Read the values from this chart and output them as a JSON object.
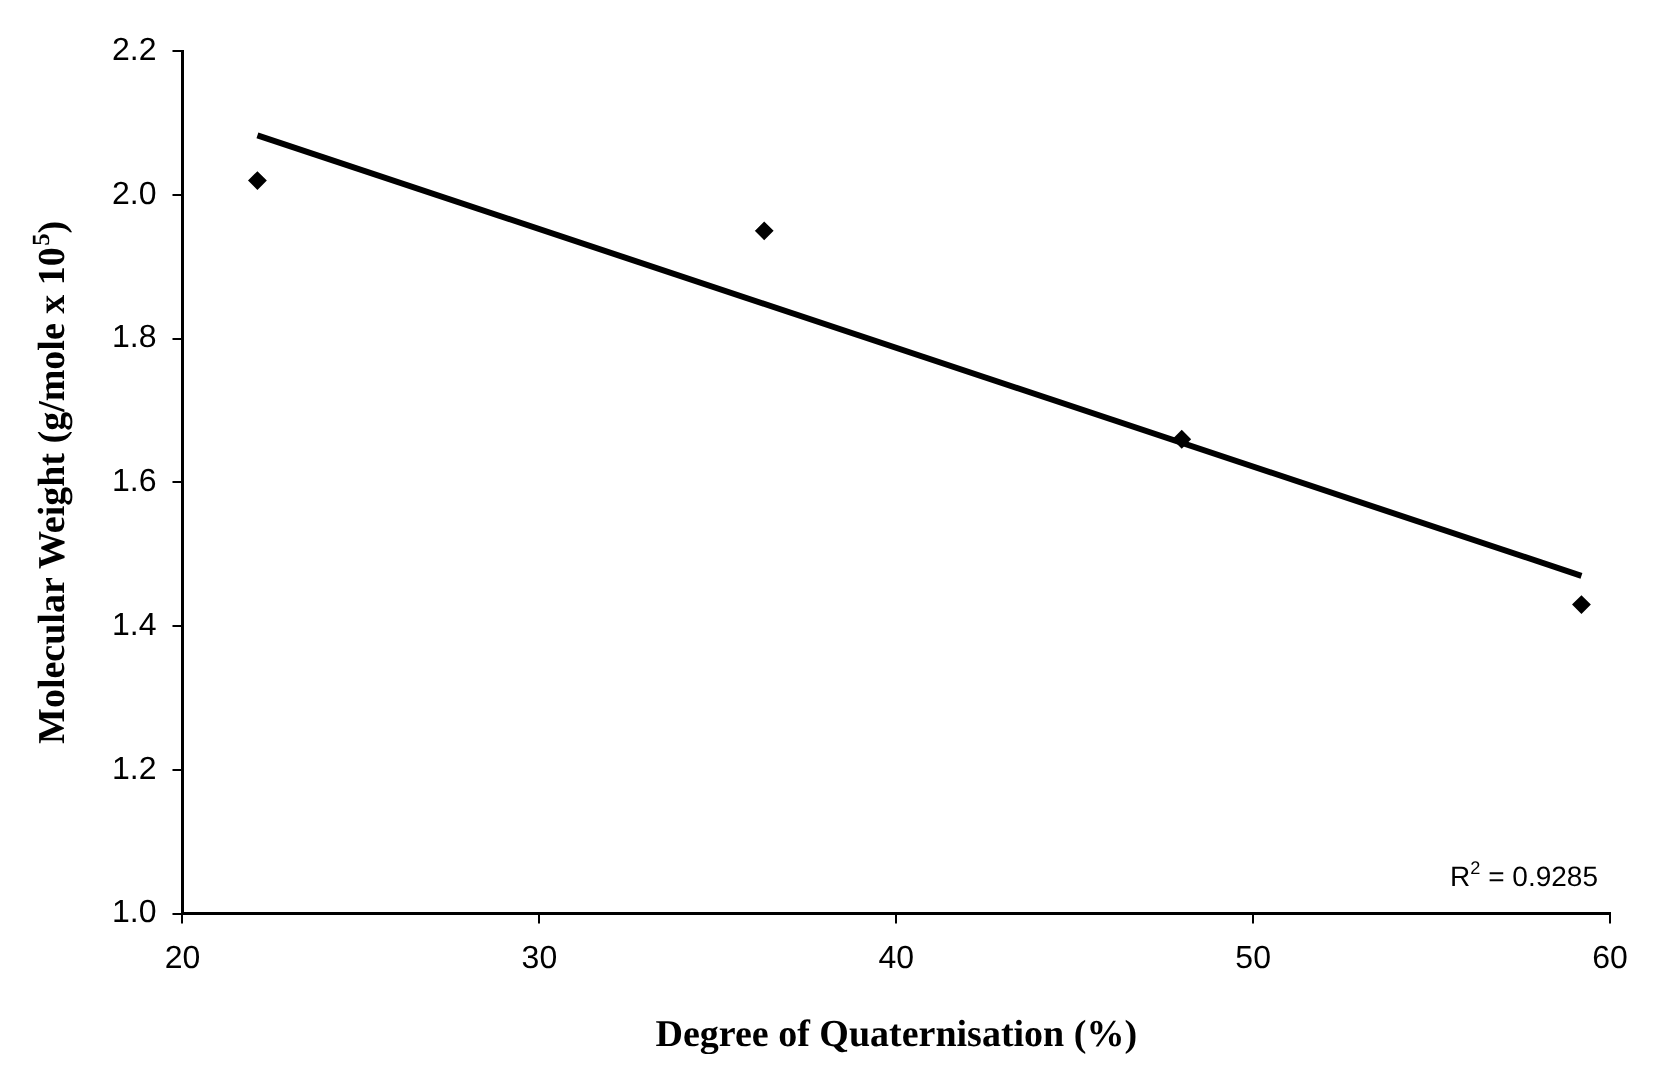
{
  "chart_data": {
    "type": "scatter",
    "xlabel": "Degree of Quaternisation (%)",
    "ylabel": "Molecular Weight (g/mole x 10$^{5}$)",
    "x": [
      22.1,
      36.3,
      48.0,
      59.2
    ],
    "series": [
      {
        "color": "#000000",
        "values": [
          2.02,
          1.95,
          1.66,
          1.43
        ],
        "marker": "diamond"
      },
      {
        "type": "line",
        "color": "#000000",
        "x": [
          22.1,
          59.2
        ],
        "values": [
          2.083,
          1.47
        ],
        "marker": "none",
        "line_style": "solid"
      }
    ],
    "xlim": [
      20,
      60
    ],
    "xticks": [
      20,
      30,
      40,
      50,
      60
    ],
    "ylim": [
      1.0,
      2.2
    ],
    "yticks": [
      {
        "value": 1.0,
        "label": "1.0"
      },
      1.2,
      1.4,
      1.6,
      1.8,
      {
        "value": 2.0,
        "label": "2.0"
      },
      2.2
    ],
    "grid": false,
    "legend": false,
    "annotations": [
      "R$^{2}$ = 0.9285"
    ]
  }
}
